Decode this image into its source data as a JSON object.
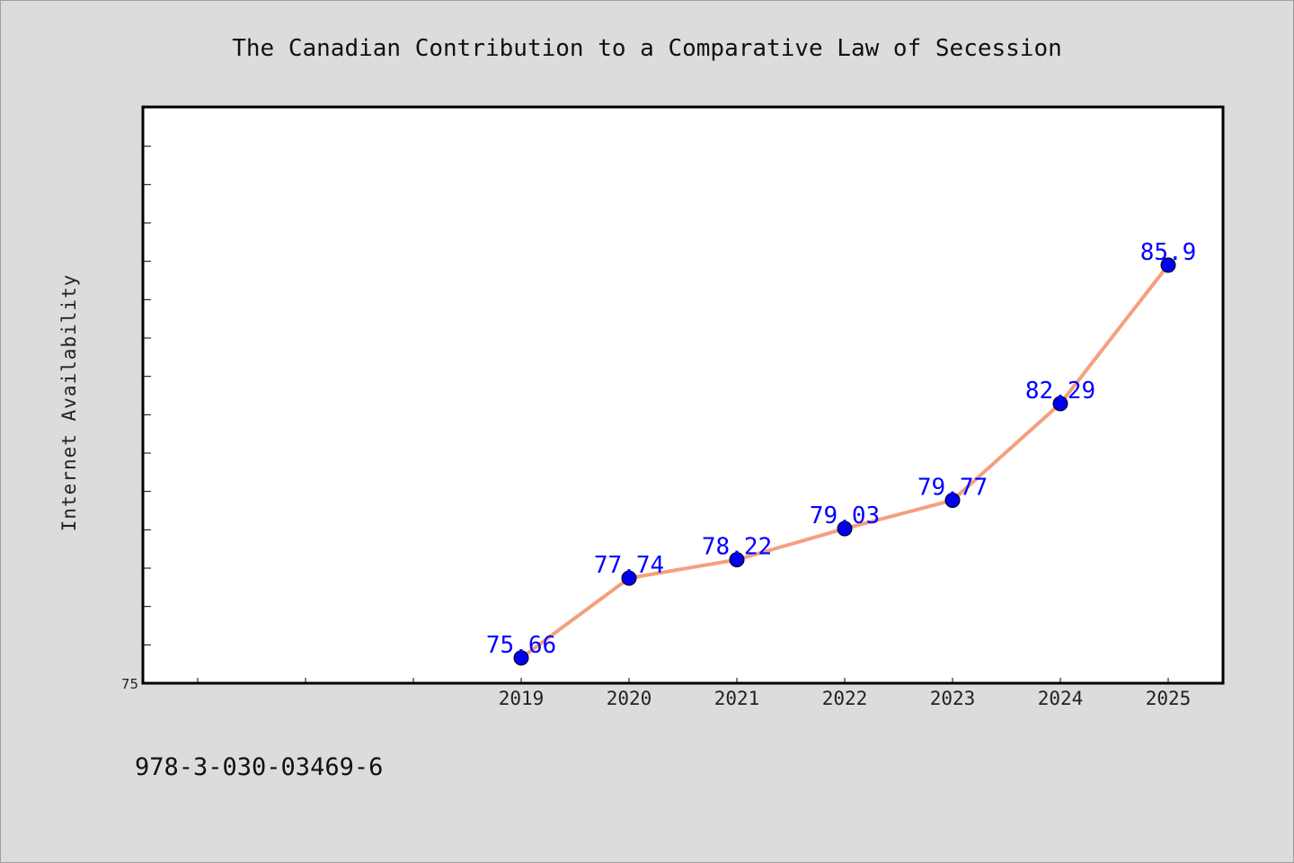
{
  "chart_data": {
    "type": "line",
    "title": "The Canadian Contribution to a Comparative Law of Secession",
    "xlabel": "",
    "ylabel": "Internet Availability",
    "categories": [
      "2019",
      "2020",
      "2021",
      "2022",
      "2023",
      "2024",
      "2025"
    ],
    "series": [
      {
        "values": [
          75.66,
          77.74,
          78.22,
          79.03,
          79.77,
          82.29,
          85.9
        ],
        "data_labels": [
          "75.66",
          "77.74",
          "78.22",
          "79.03",
          "79.77",
          "82.29",
          "85.9"
        ]
      }
    ],
    "x_range": [
      2015.5,
      2025.5
    ],
    "ylim": [
      75,
      90
    ],
    "y_tick_labels": [
      "75"
    ],
    "grid": false,
    "legend": "none"
  },
  "footer": {
    "identifier": "978-3-030-03469-6"
  },
  "colors": {
    "background": "#dcdcdc",
    "plot_background": "#ffffff",
    "line": "#f4a07e",
    "marker": "#0000ee",
    "data_label": "#0000ff",
    "axis": "#000000"
  }
}
